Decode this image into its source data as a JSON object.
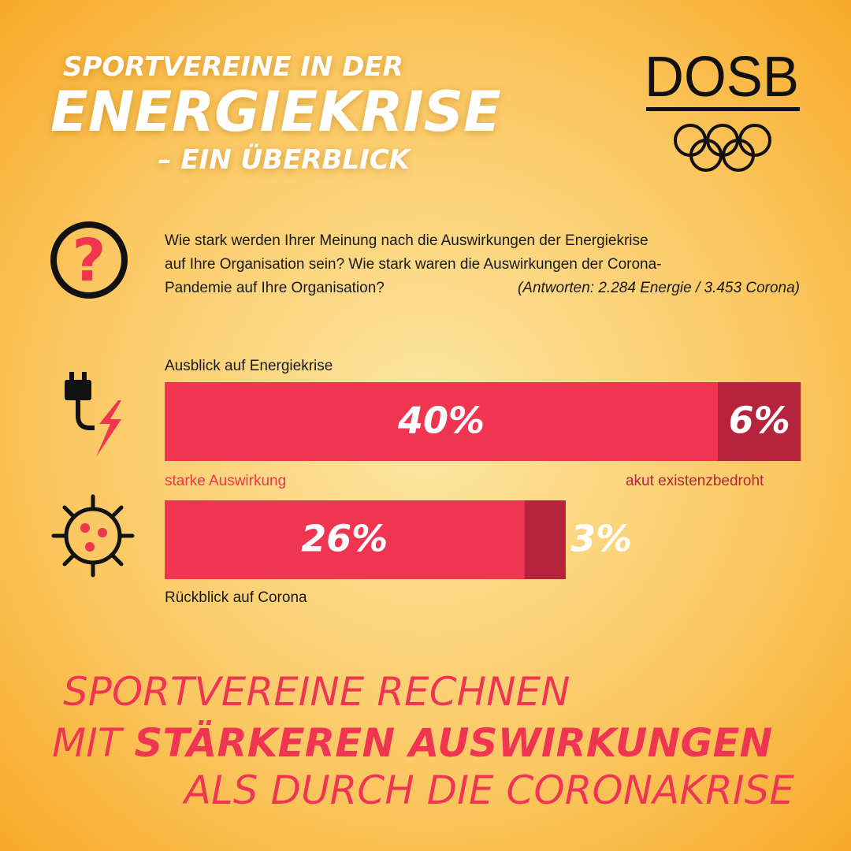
{
  "header": {
    "title_line1": "SPORTVEREINE IN DER",
    "title_line2": "ENERGIEKRISE",
    "title_line3": "– EIN ÜBERBLICK",
    "logo": "DOSB"
  },
  "question": {
    "line1": "Wie stark werden Ihrer Meinung nach die Auswirkungen der Energiekrise",
    "line2": "auf Ihre Organisation sein? Wie stark waren die Auswirkungen der Corona-",
    "line3": "Pandemie auf Ihre Organisation?",
    "note": "(Antworten: 2.284 Energie / 3.453 Corona)"
  },
  "chart_data": {
    "type": "bar",
    "orientation": "horizontal",
    "stacked": true,
    "categories": [
      "Ausblick auf Energiekrise",
      "Rückblick auf Corona"
    ],
    "series": [
      {
        "name": "starke Auswirkung",
        "color": "#ef3550",
        "values": [
          40,
          26
        ],
        "value_labels": [
          "40%",
          "26%"
        ]
      },
      {
        "name": "akut existenzbedroht",
        "color": "#b5233c",
        "values": [
          6,
          3
        ],
        "value_labels": [
          "6%",
          "3%"
        ]
      }
    ]
  },
  "footer": {
    "line1": "SPORTVEREINE RECHNEN",
    "line2_a": "MIT",
    "line2_b": "STÄRKEREN AUSWIRKUNGEN",
    "line3": "ALS DURCH DIE CORONAKRISE"
  }
}
